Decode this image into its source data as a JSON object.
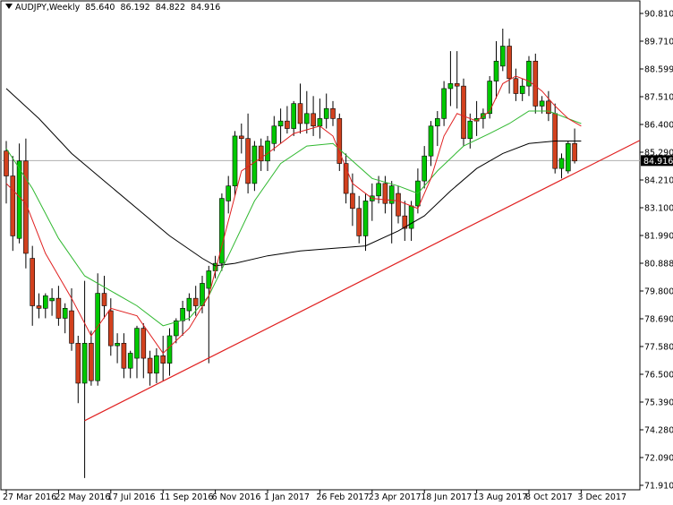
{
  "header": {
    "symbol": "AUDJPY,Weekly",
    "open": "85.640",
    "high": "86.192",
    "low": "84.822",
    "close": "84.916"
  },
  "colors": {
    "bull": "#00c800",
    "bear": "#d2411e",
    "wick": "#000000",
    "ma_fast": "#e02020",
    "ma_mid": "#2fb82f",
    "ma_slow": "#000000",
    "trendline": "#e02020",
    "price_tag_bg": "#000000",
    "price_tag_text": "#ffffff"
  },
  "chart_data": {
    "type": "candlestick",
    "y_axis": {
      "ticks": [
        "90.810",
        "89.710",
        "88.599",
        "87.510",
        "86.400",
        "85.290",
        "84.210",
        "83.100",
        "81.990",
        "80.888",
        "79.800",
        "78.690",
        "77.580",
        "76.500",
        "75.390",
        "74.280",
        "72.090",
        "71.910"
      ],
      "range": [
        71.91,
        91.0
      ],
      "current_price": "84.916"
    },
    "x_axis": {
      "labels": [
        "27 Mar 2016",
        "22 May 2016",
        "17 Jul 2016",
        "11 Sep 2016",
        "6 Nov 2016",
        "1 Jan 2017",
        "26 Feb 2017",
        "23 Apr 2017",
        "18 Jun 2017",
        "13 Aug 2017",
        "8 Oct 2017",
        "3 Dec 2017"
      ],
      "label_bar_index": [
        0,
        8,
        16,
        24,
        32,
        40,
        48,
        56,
        64,
        72,
        80,
        88
      ]
    },
    "candles": [
      {
        "o": 85.3,
        "h": 85.7,
        "l": 83.2,
        "c": 84.3
      },
      {
        "o": 84.3,
        "h": 85.1,
        "l": 81.3,
        "c": 81.9
      },
      {
        "o": 81.8,
        "h": 85.6,
        "l": 81.6,
        "c": 84.9
      },
      {
        "o": 84.9,
        "h": 85.8,
        "l": 80.6,
        "c": 81.2
      },
      {
        "o": 81.0,
        "h": 81.5,
        "l": 78.3,
        "c": 79.1
      },
      {
        "o": 79.1,
        "h": 79.6,
        "l": 78.6,
        "c": 79.0
      },
      {
        "o": 79.0,
        "h": 79.6,
        "l": 78.6,
        "c": 79.5
      },
      {
        "o": 79.3,
        "h": 79.8,
        "l": 78.7,
        "c": 79.4
      },
      {
        "o": 79.4,
        "h": 79.9,
        "l": 78.3,
        "c": 78.6
      },
      {
        "o": 78.6,
        "h": 79.2,
        "l": 78.0,
        "c": 79.0
      },
      {
        "o": 78.9,
        "h": 79.8,
        "l": 77.3,
        "c": 77.6
      },
      {
        "o": 77.6,
        "h": 77.9,
        "l": 75.2,
        "c": 76.0
      },
      {
        "o": 76.0,
        "h": 80.1,
        "l": 72.2,
        "c": 77.6
      },
      {
        "o": 77.6,
        "h": 78.1,
        "l": 75.9,
        "c": 76.1
      },
      {
        "o": 76.1,
        "h": 80.4,
        "l": 75.9,
        "c": 79.6
      },
      {
        "o": 79.6,
        "h": 80.3,
        "l": 78.6,
        "c": 79.1
      },
      {
        "o": 78.9,
        "h": 79.4,
        "l": 77.1,
        "c": 77.5
      },
      {
        "o": 77.5,
        "h": 78.0,
        "l": 76.8,
        "c": 77.6
      },
      {
        "o": 77.6,
        "h": 78.0,
        "l": 76.2,
        "c": 76.6
      },
      {
        "o": 76.6,
        "h": 77.3,
        "l": 76.2,
        "c": 77.2
      },
      {
        "o": 77.0,
        "h": 78.3,
        "l": 76.2,
        "c": 78.2
      },
      {
        "o": 78.2,
        "h": 78.4,
        "l": 76.2,
        "c": 77.0
      },
      {
        "o": 77.0,
        "h": 77.3,
        "l": 75.9,
        "c": 76.4
      },
      {
        "o": 76.4,
        "h": 77.4,
        "l": 76.0,
        "c": 77.1
      },
      {
        "o": 77.1,
        "h": 77.9,
        "l": 76.1,
        "c": 76.8
      },
      {
        "o": 76.8,
        "h": 78.2,
        "l": 76.3,
        "c": 77.9
      },
      {
        "o": 77.9,
        "h": 78.6,
        "l": 77.6,
        "c": 78.5
      },
      {
        "o": 78.5,
        "h": 79.3,
        "l": 77.9,
        "c": 79.0
      },
      {
        "o": 78.9,
        "h": 79.6,
        "l": 78.5,
        "c": 79.4
      },
      {
        "o": 79.4,
        "h": 79.9,
        "l": 78.7,
        "c": 79.1
      },
      {
        "o": 79.1,
        "h": 80.3,
        "l": 78.8,
        "c": 80.0
      },
      {
        "o": 79.8,
        "h": 80.7,
        "l": 76.8,
        "c": 80.5
      },
      {
        "o": 80.5,
        "h": 81.1,
        "l": 80.2,
        "c": 80.8
      },
      {
        "o": 80.8,
        "h": 83.6,
        "l": 80.5,
        "c": 83.4
      },
      {
        "o": 83.3,
        "h": 84.3,
        "l": 82.8,
        "c": 83.9
      },
      {
        "o": 83.9,
        "h": 86.1,
        "l": 83.5,
        "c": 85.9
      },
      {
        "o": 85.9,
        "h": 86.4,
        "l": 85.2,
        "c": 85.8
      },
      {
        "o": 85.8,
        "h": 86.8,
        "l": 83.6,
        "c": 84.0
      },
      {
        "o": 84.0,
        "h": 85.7,
        "l": 83.7,
        "c": 85.5
      },
      {
        "o": 85.5,
        "h": 85.8,
        "l": 84.5,
        "c": 84.9
      },
      {
        "o": 84.9,
        "h": 85.9,
        "l": 84.5,
        "c": 85.7
      },
      {
        "o": 85.6,
        "h": 86.7,
        "l": 85.3,
        "c": 86.3
      },
      {
        "o": 86.3,
        "h": 87.0,
        "l": 85.6,
        "c": 86.5
      },
      {
        "o": 86.5,
        "h": 87.1,
        "l": 86.0,
        "c": 86.2
      },
      {
        "o": 86.2,
        "h": 87.3,
        "l": 85.9,
        "c": 87.2
      },
      {
        "o": 87.2,
        "h": 88.0,
        "l": 86.0,
        "c": 86.4
      },
      {
        "o": 86.4,
        "h": 87.7,
        "l": 86.0,
        "c": 86.8
      },
      {
        "o": 86.8,
        "h": 87.5,
        "l": 85.9,
        "c": 86.3
      },
      {
        "o": 86.3,
        "h": 87.4,
        "l": 85.8,
        "c": 86.6
      },
      {
        "o": 86.6,
        "h": 87.6,
        "l": 86.2,
        "c": 87.0
      },
      {
        "o": 87.0,
        "h": 87.3,
        "l": 86.3,
        "c": 86.6
      },
      {
        "o": 86.6,
        "h": 86.8,
        "l": 84.5,
        "c": 84.8
      },
      {
        "o": 84.8,
        "h": 85.2,
        "l": 83.2,
        "c": 83.6
      },
      {
        "o": 83.6,
        "h": 84.4,
        "l": 82.3,
        "c": 83.0
      },
      {
        "o": 83.0,
        "h": 83.5,
        "l": 81.6,
        "c": 81.9
      },
      {
        "o": 81.9,
        "h": 83.6,
        "l": 81.3,
        "c": 83.3
      },
      {
        "o": 83.3,
        "h": 84.0,
        "l": 82.5,
        "c": 83.5
      },
      {
        "o": 83.5,
        "h": 84.3,
        "l": 83.2,
        "c": 84.0
      },
      {
        "o": 84.0,
        "h": 84.3,
        "l": 82.8,
        "c": 83.2
      },
      {
        "o": 83.2,
        "h": 84.1,
        "l": 81.6,
        "c": 83.9
      },
      {
        "o": 83.6,
        "h": 83.9,
        "l": 82.4,
        "c": 82.7
      },
      {
        "o": 82.7,
        "h": 83.3,
        "l": 81.7,
        "c": 82.2
      },
      {
        "o": 82.2,
        "h": 83.3,
        "l": 81.7,
        "c": 83.1
      },
      {
        "o": 83.1,
        "h": 84.6,
        "l": 82.8,
        "c": 84.1
      },
      {
        "o": 84.1,
        "h": 85.5,
        "l": 83.8,
        "c": 85.1
      },
      {
        "o": 85.1,
        "h": 86.5,
        "l": 84.7,
        "c": 86.3
      },
      {
        "o": 86.3,
        "h": 86.9,
        "l": 85.5,
        "c": 86.6
      },
      {
        "o": 86.6,
        "h": 88.1,
        "l": 86.3,
        "c": 87.8
      },
      {
        "o": 87.8,
        "h": 89.3,
        "l": 87.1,
        "c": 88.0
      },
      {
        "o": 88.0,
        "h": 89.3,
        "l": 87.0,
        "c": 87.9
      },
      {
        "o": 87.9,
        "h": 88.2,
        "l": 85.5,
        "c": 85.8
      },
      {
        "o": 85.8,
        "h": 86.8,
        "l": 85.4,
        "c": 86.5
      },
      {
        "o": 86.5,
        "h": 87.3,
        "l": 85.9,
        "c": 86.6
      },
      {
        "o": 86.6,
        "h": 87.0,
        "l": 86.2,
        "c": 86.8
      },
      {
        "o": 86.8,
        "h": 88.3,
        "l": 86.6,
        "c": 88.1
      },
      {
        "o": 88.1,
        "h": 89.7,
        "l": 87.4,
        "c": 88.9
      },
      {
        "o": 88.7,
        "h": 90.2,
        "l": 88.5,
        "c": 89.5
      },
      {
        "o": 89.5,
        "h": 89.8,
        "l": 87.6,
        "c": 88.2
      },
      {
        "o": 88.2,
        "h": 88.6,
        "l": 87.3,
        "c": 87.6
      },
      {
        "o": 87.6,
        "h": 88.2,
        "l": 87.3,
        "c": 87.9
      },
      {
        "o": 87.9,
        "h": 89.1,
        "l": 87.5,
        "c": 88.9
      },
      {
        "o": 88.9,
        "h": 89.2,
        "l": 86.8,
        "c": 87.1
      },
      {
        "o": 87.1,
        "h": 87.5,
        "l": 86.8,
        "c": 87.3
      },
      {
        "o": 87.3,
        "h": 87.7,
        "l": 86.5,
        "c": 86.8
      },
      {
        "o": 86.8,
        "h": 87.2,
        "l": 84.4,
        "c": 84.6
      },
      {
        "o": 84.6,
        "h": 85.2,
        "l": 84.2,
        "c": 85.0
      },
      {
        "o": 84.5,
        "h": 85.7,
        "l": 84.4,
        "c": 85.6
      },
      {
        "o": 85.6,
        "h": 86.2,
        "l": 84.8,
        "c": 84.9
      }
    ],
    "ma_fast": [
      [
        0,
        84.0
      ],
      [
        3,
        83.2
      ],
      [
        6,
        81.2
      ],
      [
        10,
        79.4
      ],
      [
        13,
        77.9
      ],
      [
        16,
        79.0
      ],
      [
        20,
        78.7
      ],
      [
        24,
        77.2
      ],
      [
        28,
        78.2
      ],
      [
        31,
        79.5
      ],
      [
        33,
        81.5
      ],
      [
        36,
        84.5
      ],
      [
        40,
        85.2
      ],
      [
        44,
        86.0
      ],
      [
        48,
        86.3
      ],
      [
        50,
        85.9
      ],
      [
        53,
        84.0
      ],
      [
        56,
        83.4
      ],
      [
        60,
        83.3
      ],
      [
        63,
        83.0
      ],
      [
        65,
        84.2
      ],
      [
        67,
        85.9
      ],
      [
        69,
        86.8
      ],
      [
        72,
        86.5
      ],
      [
        74,
        86.9
      ],
      [
        76,
        88.0
      ],
      [
        78,
        88.3
      ],
      [
        80,
        88.1
      ],
      [
        82,
        87.7
      ],
      [
        84,
        87.1
      ],
      [
        86,
        86.6
      ],
      [
        88,
        86.3
      ]
    ],
    "ma_mid": [
      [
        0,
        85.4
      ],
      [
        4,
        83.8
      ],
      [
        8,
        81.8
      ],
      [
        12,
        80.3
      ],
      [
        16,
        79.7
      ],
      [
        20,
        79.1
      ],
      [
        24,
        78.3
      ],
      [
        28,
        78.6
      ],
      [
        31,
        79.5
      ],
      [
        34,
        81.1
      ],
      [
        38,
        83.3
      ],
      [
        42,
        84.8
      ],
      [
        46,
        85.5
      ],
      [
        50,
        85.6
      ],
      [
        53,
        84.9
      ],
      [
        56,
        84.2
      ],
      [
        60,
        83.9
      ],
      [
        63,
        83.6
      ],
      [
        66,
        84.5
      ],
      [
        70,
        85.5
      ],
      [
        74,
        86.0
      ],
      [
        77,
        86.4
      ],
      [
        80,
        86.9
      ],
      [
        83,
        86.9
      ],
      [
        86,
        86.6
      ],
      [
        88,
        86.4
      ]
    ],
    "ma_slow": [
      [
        0,
        87.8
      ],
      [
        5,
        86.6
      ],
      [
        10,
        85.2
      ],
      [
        15,
        84.1
      ],
      [
        20,
        83.0
      ],
      [
        25,
        81.9
      ],
      [
        30,
        81.0
      ],
      [
        32,
        80.7
      ],
      [
        35,
        80.8
      ],
      [
        40,
        81.1
      ],
      [
        45,
        81.3
      ],
      [
        50,
        81.4
      ],
      [
        55,
        81.5
      ],
      [
        60,
        82.1
      ],
      [
        64,
        82.7
      ],
      [
        68,
        83.7
      ],
      [
        72,
        84.6
      ],
      [
        76,
        85.2
      ],
      [
        80,
        85.6
      ],
      [
        84,
        85.7
      ],
      [
        88,
        85.7
      ]
    ],
    "trendline": [
      [
        12,
        74.5
      ],
      [
        93,
        85.2
      ]
    ]
  }
}
